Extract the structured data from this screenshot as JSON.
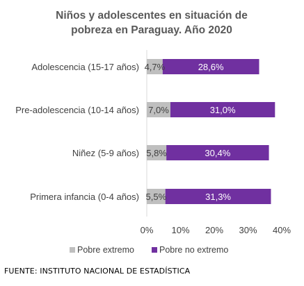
{
  "chart_data": {
    "type": "bar",
    "orientation": "horizontal",
    "stacked": true,
    "title": "Niños y adolescentes en situación de pobreza en Paraguay. Año 2020",
    "categories": [
      "Adolescencia (15-17 años)",
      "Pre-adolescencia (10-14 años)",
      "Niñez (5-9 años)",
      "Primera infancia (0-4 años)"
    ],
    "series": [
      {
        "name": "Pobre extremo",
        "color": "#bfbfbf",
        "values": [
          4.7,
          7.0,
          5.8,
          5.5
        ],
        "labels": [
          "4,7%",
          "7,0%",
          "5,8%",
          "5,5%"
        ]
      },
      {
        "name": "Pobre no extremo",
        "color": "#7030a0",
        "values": [
          28.6,
          31.0,
          30.4,
          31.3
        ],
        "labels": [
          "28,6%",
          "31,0%",
          "30,4%",
          "31,3%"
        ]
      }
    ],
    "xlim": [
      0,
      40
    ],
    "xticks": [
      "0%",
      "10%",
      "20%",
      "30%",
      "40%"
    ],
    "grid": false,
    "legend": "bottom"
  },
  "source": "FUENTE: INSTITUTO NACIONAL DE ESTADÍSTICA"
}
